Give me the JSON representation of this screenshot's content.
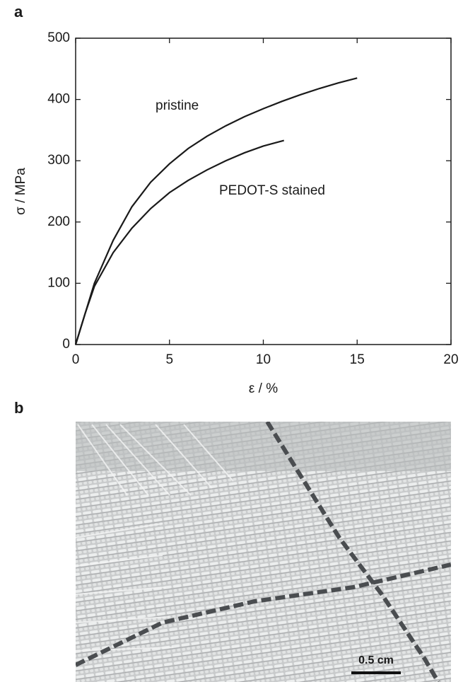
{
  "panel_labels": [
    "a",
    "b"
  ],
  "scale_bar": "0.5 cm",
  "chart_data": {
    "type": "line",
    "xlabel": "ε / %",
    "ylabel": "σ / MPa",
    "xlim": [
      0,
      20
    ],
    "xticks": [
      0,
      5,
      10,
      15,
      20
    ],
    "ylim": [
      0,
      500
    ],
    "yticks": [
      0,
      100,
      200,
      300,
      400,
      500
    ],
    "series": [
      {
        "name": "pristine",
        "color": "#1a1a1a",
        "x": [
          0,
          0.5,
          1,
          2,
          3,
          4,
          5,
          6,
          7,
          8,
          9,
          10,
          11,
          12,
          13,
          14,
          15
        ],
        "values": [
          0,
          50,
          100,
          170,
          225,
          265,
          295,
          320,
          340,
          357,
          372,
          385,
          397,
          408,
          418,
          427,
          435
        ]
      },
      {
        "name": "PEDOT-S stained",
        "color": "#1a1a1a",
        "x": [
          0,
          0.5,
          1,
          2,
          3,
          4,
          5,
          6,
          7,
          8,
          9,
          10,
          11.1
        ],
        "values": [
          0,
          50,
          95,
          150,
          190,
          222,
          248,
          268,
          285,
          300,
          313,
          324,
          333
        ]
      }
    ]
  }
}
